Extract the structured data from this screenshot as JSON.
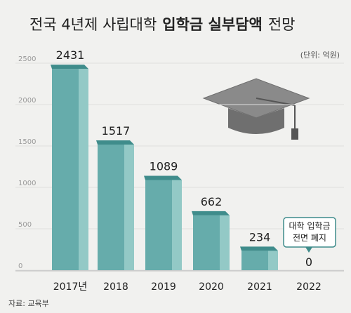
{
  "chart_data": {
    "type": "bar3d",
    "title": [
      "전국 4년제 사립대학",
      "입학금 실부담액",
      "전망"
    ],
    "unit": "(단위: 억원)",
    "source": "자료: 교육부",
    "annotation": [
      "대학 입학금",
      "전면 폐지"
    ],
    "categories": [
      "2017년",
      "2018",
      "2019",
      "2020",
      "2021",
      "2022"
    ],
    "values": [
      2431,
      1517,
      1089,
      662,
      234,
      0
    ],
    "ylim": [
      0,
      2500
    ],
    "yticks": [
      0,
      500,
      1000,
      1500,
      2000,
      2500
    ],
    "grid": true,
    "colors": {
      "front": "#66acab",
      "side": "#93c9c6",
      "top": "#3f8c8b"
    }
  }
}
